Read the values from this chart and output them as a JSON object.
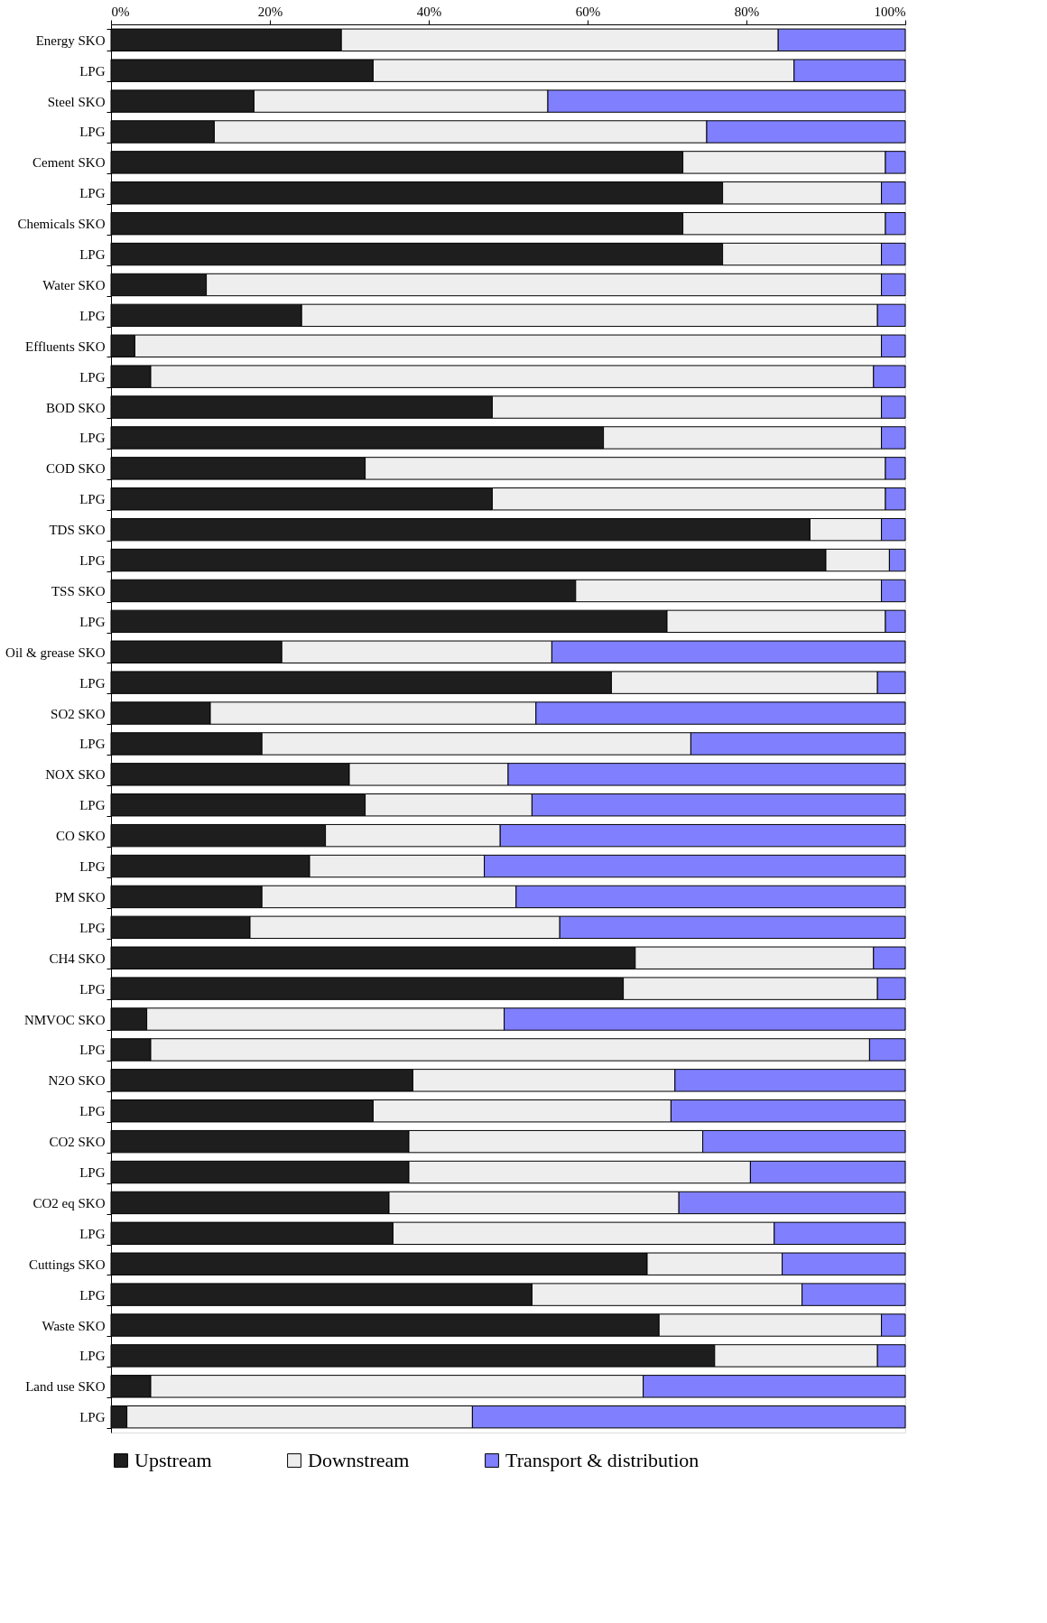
{
  "chart_data": {
    "type": "bar",
    "orientation": "horizontal",
    "stacked": true,
    "legend": "bottom",
    "grid": false,
    "categories": [
      "Energy SKO",
      "LPG",
      "Steel SKO",
      "LPG",
      "Cement SKO",
      "LPG",
      "Chemicals SKO",
      "LPG",
      "Water SKO",
      "LPG",
      "Effluents SKO",
      "LPG",
      "BOD SKO",
      "LPG",
      "COD SKO",
      "LPG",
      "TDS SKO",
      "LPG",
      "TSS SKO",
      "LPG",
      "Oil & grease SKO",
      "LPG",
      "SO2 SKO",
      "LPG",
      "NOX SKO",
      "LPG",
      "CO SKO",
      "LPG",
      "PM SKO",
      "LPG",
      "CH4 SKO",
      "LPG",
      "NMVOC SKO",
      "LPG",
      "N2O SKO",
      "LPG",
      "CO2 SKO",
      "LPG",
      "CO2 eq SKO",
      "LPG",
      "Cuttings SKO",
      "LPG",
      "Waste  SKO",
      "LPG",
      "Land use SKO",
      "LPG"
    ],
    "xlim": [
      0,
      100
    ],
    "xticks": [
      {
        "value": 0,
        "label": "0%"
      },
      {
        "value": 20,
        "label": "20%"
      },
      {
        "value": 40,
        "label": "40%"
      },
      {
        "value": 60,
        "label": "60%"
      },
      {
        "value": 80,
        "label": "80%"
      },
      {
        "value": 100,
        "label": "100%"
      }
    ],
    "series": [
      {
        "name": "Upstream",
        "color": "#1e1e1e",
        "values": [
          29,
          33,
          18,
          13,
          72,
          77,
          72,
          77,
          12,
          24,
          3,
          5,
          48,
          62,
          32,
          48,
          88,
          90,
          58.5,
          70,
          21.5,
          63,
          12.5,
          19,
          30,
          32,
          27,
          25,
          19,
          17.5,
          66,
          64.5,
          4.5,
          5,
          38,
          33,
          37.5,
          37.5,
          35,
          35.5,
          67.5,
          53,
          69,
          76,
          5,
          2
        ]
      },
      {
        "name": "Downstream",
        "color": "#eeeeee",
        "values": [
          55,
          53,
          37,
          62,
          25.5,
          20,
          25.5,
          20,
          85,
          72.5,
          94,
          91,
          49,
          35,
          65.5,
          49.5,
          9,
          8,
          38.5,
          27.5,
          34,
          33.5,
          41,
          54,
          20,
          21,
          22,
          22,
          32,
          39,
          30,
          32,
          45,
          90.5,
          33,
          37.5,
          37,
          43,
          36.5,
          48,
          17,
          34,
          28,
          20.5,
          62,
          43.5
        ]
      },
      {
        "name": "Transport & distribution",
        "color": "#8080ff",
        "values": [
          16,
          14,
          45,
          25,
          2.5,
          3,
          2.5,
          3,
          3,
          3.5,
          3,
          4,
          3,
          3,
          2.5,
          2.5,
          3,
          2,
          3,
          2.5,
          44.5,
          3.5,
          46.5,
          27,
          50,
          47,
          51,
          53,
          49,
          43.5,
          4,
          3.5,
          50.5,
          4.5,
          29,
          29.5,
          25.5,
          19.5,
          28.5,
          16.5,
          15.5,
          13,
          3,
          3.5,
          33,
          54.5
        ]
      }
    ]
  }
}
